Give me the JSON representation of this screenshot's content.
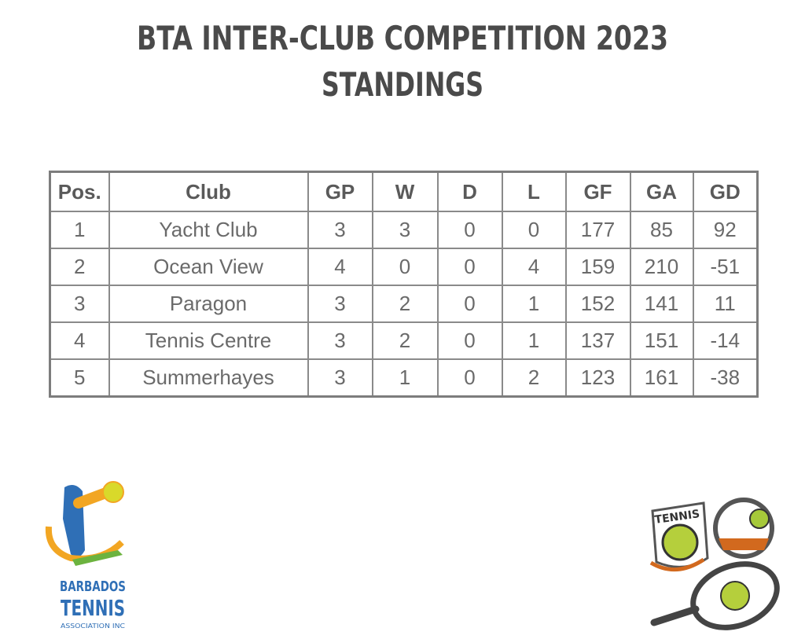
{
  "header": {
    "title_lines": [
      "BTA INTER-CLUB COMPETITION 2023",
      "STANDINGS"
    ]
  },
  "table": {
    "columns": [
      "Pos.",
      "Club",
      "GP",
      "W",
      "D",
      "L",
      "GF",
      "GA",
      "GD"
    ],
    "rows": [
      [
        1,
        "Yacht Club",
        3,
        3,
        0,
        0,
        177,
        85,
        92
      ],
      [
        2,
        "Ocean View",
        4,
        0,
        0,
        4,
        159,
        210,
        -51
      ],
      [
        3,
        "Paragon",
        3,
        2,
        0,
        1,
        152,
        141,
        11
      ],
      [
        4,
        "Tennis Centre",
        3,
        2,
        0,
        1,
        137,
        151,
        -14
      ],
      [
        5,
        "Summerhayes",
        3,
        1,
        0,
        2,
        123,
        161,
        -38
      ]
    ]
  },
  "logos": {
    "left": [
      "BARBADOS",
      "TENNIS",
      "ASSOCIATION INC"
    ],
    "right": "TENNIS"
  }
}
